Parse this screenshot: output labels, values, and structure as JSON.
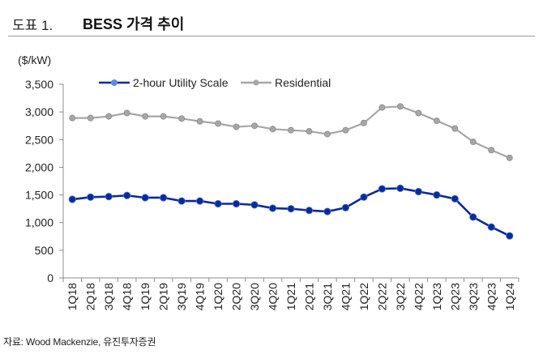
{
  "header": {
    "figure_number": "도표 1.",
    "title": "BESS 가격 추이"
  },
  "source": "자료: Wood Mackenzie, 유진투자증권",
  "chart_data": {
    "type": "line",
    "title": "BESS 가격 추이",
    "ylabel": "($/kW)",
    "xlabel": "",
    "ylim": [
      0,
      3500
    ],
    "yticks": [
      0,
      500,
      1000,
      1500,
      2000,
      2500,
      3000,
      3500
    ],
    "ytick_labels": [
      "0",
      "500",
      "1,000",
      "1,500",
      "2,000",
      "2,500",
      "3,000",
      "3,500"
    ],
    "legend_position": "top",
    "grid": false,
    "categories": [
      "1Q18",
      "2Q18",
      "3Q18",
      "4Q18",
      "1Q19",
      "2Q19",
      "3Q19",
      "4Q19",
      "1Q20",
      "2Q20",
      "3Q20",
      "4Q20",
      "1Q21",
      "2Q21",
      "3Q21",
      "4Q21",
      "1Q22",
      "2Q22",
      "3Q22",
      "4Q22",
      "1Q23",
      "2Q23",
      "3Q23",
      "4Q23",
      "1Q24"
    ],
    "series": [
      {
        "name": "2-hour Utility Scale",
        "color": "#0b2a9a",
        "values": [
          1420,
          1460,
          1470,
          1490,
          1450,
          1450,
          1390,
          1390,
          1340,
          1340,
          1320,
          1260,
          1250,
          1220,
          1200,
          1270,
          1460,
          1610,
          1620,
          1560,
          1500,
          1430,
          1100,
          920,
          760
        ]
      },
      {
        "name": "Residential",
        "color": "#a6a6a6",
        "values": [
          2890,
          2890,
          2920,
          2980,
          2920,
          2920,
          2880,
          2830,
          2790,
          2730,
          2750,
          2690,
          2670,
          2650,
          2600,
          2670,
          2800,
          3080,
          3100,
          2980,
          2840,
          2700,
          2460,
          2310,
          2170
        ]
      }
    ]
  }
}
